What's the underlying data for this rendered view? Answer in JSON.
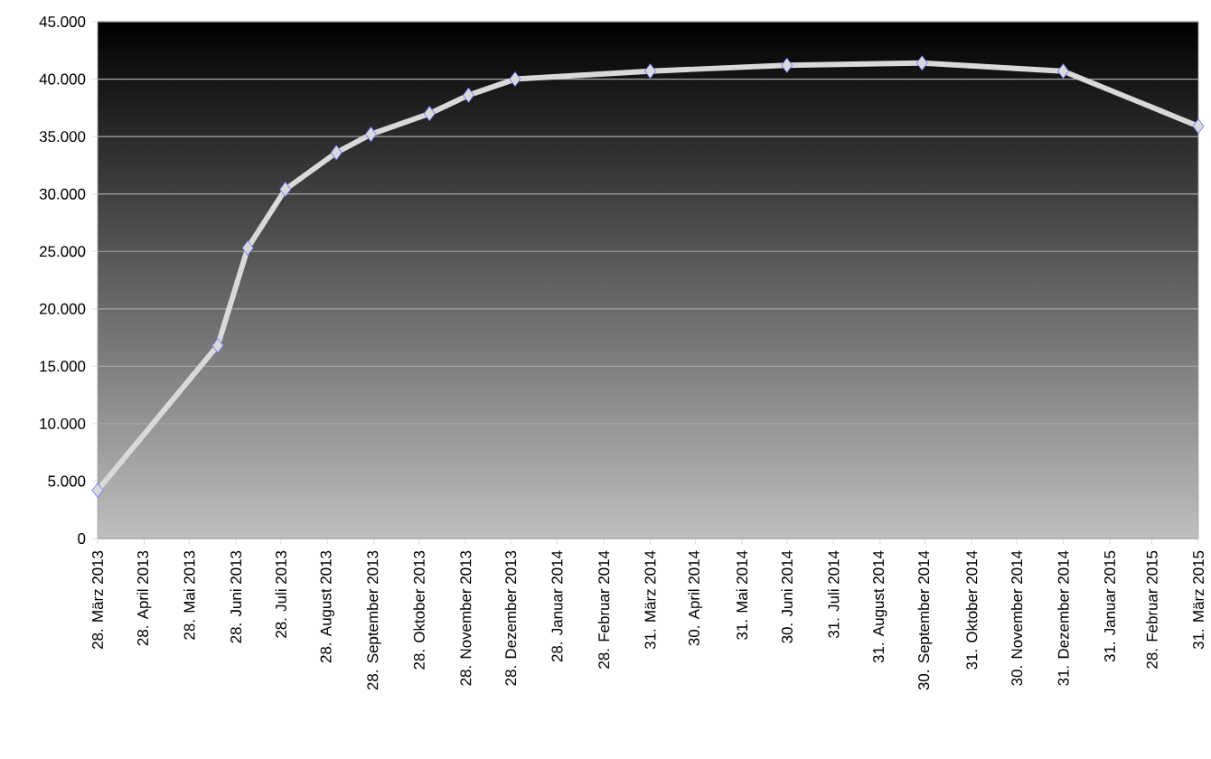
{
  "chart_data": {
    "type": "line",
    "x": [
      "2013-03-28",
      "2013-06-16",
      "2013-07-06",
      "2013-07-31",
      "2013-09-03",
      "2013-09-26",
      "2013-11-04",
      "2013-11-30",
      "2013-12-31",
      "2014-03-31",
      "2014-06-30",
      "2014-09-28",
      "2014-12-31",
      "2015-03-31"
    ],
    "series": [
      {
        "color": "#d9d9d9",
        "values": [
          4200,
          16800,
          25300,
          30400,
          33600,
          35200,
          37000,
          38600,
          40000,
          40700,
          41200,
          41400,
          40700,
          35900
        ]
      }
    ],
    "xlim": [
      "2013-03-28",
      "2015-03-31"
    ],
    "xticks": [
      {
        "value": "2013-03-28",
        "label": "28. März 2013"
      },
      {
        "value": "2013-04-28",
        "label": "28. April 2013"
      },
      {
        "value": "2013-05-28",
        "label": "28. Mai 2013"
      },
      {
        "value": "2013-06-28",
        "label": "28. Juni 2013"
      },
      {
        "value": "2013-07-28",
        "label": "28. Juli 2013"
      },
      {
        "value": "2013-08-28",
        "label": "28. August 2013"
      },
      {
        "value": "2013-09-28",
        "label": "28. September 2013"
      },
      {
        "value": "2013-10-28",
        "label": "28. Oktober 2013"
      },
      {
        "value": "2013-11-28",
        "label": "28. November 2013"
      },
      {
        "value": "2013-12-28",
        "label": "28. Dezember 2013"
      },
      {
        "value": "2014-01-28",
        "label": "28. Januar 2014"
      },
      {
        "value": "2014-02-28",
        "label": "28. Februar 2014"
      },
      {
        "value": "2014-03-31",
        "label": "31. März 2014"
      },
      {
        "value": "2014-04-30",
        "label": "30. April 2014"
      },
      {
        "value": "2014-05-31",
        "label": "31. Mai 2014"
      },
      {
        "value": "2014-06-30",
        "label": "30. Juni 2014"
      },
      {
        "value": "2014-07-31",
        "label": "31. Juli 2014"
      },
      {
        "value": "2014-08-31",
        "label": "31. August 2014"
      },
      {
        "value": "2014-09-30",
        "label": "30. September 2014"
      },
      {
        "value": "2014-10-31",
        "label": "31. Oktober 2014"
      },
      {
        "value": "2014-11-30",
        "label": "30. November 2014"
      },
      {
        "value": "2014-12-31",
        "label": "31. Dezember 2014"
      },
      {
        "value": "2015-01-31",
        "label": "31. Januar 2015"
      },
      {
        "value": "2015-02-28",
        "label": "28. Februar 2015"
      },
      {
        "value": "2015-03-31",
        "label": "31. März 2015"
      }
    ],
    "ylim": [
      0,
      45000
    ],
    "yticks": [
      0,
      {
        "value": 5000,
        "label": "5.000"
      },
      {
        "value": 10000,
        "label": "10.000"
      },
      {
        "value": 15000,
        "label": "15.000"
      },
      {
        "value": 20000,
        "label": "20.000"
      },
      {
        "value": 25000,
        "label": "25.000"
      },
      {
        "value": 30000,
        "label": "30.000"
      },
      {
        "value": 35000,
        "label": "35.000"
      },
      {
        "value": 40000,
        "label": "40.000"
      },
      {
        "value": 45000,
        "label": "45.000"
      }
    ],
    "grid": "y",
    "marker": "diamond"
  }
}
